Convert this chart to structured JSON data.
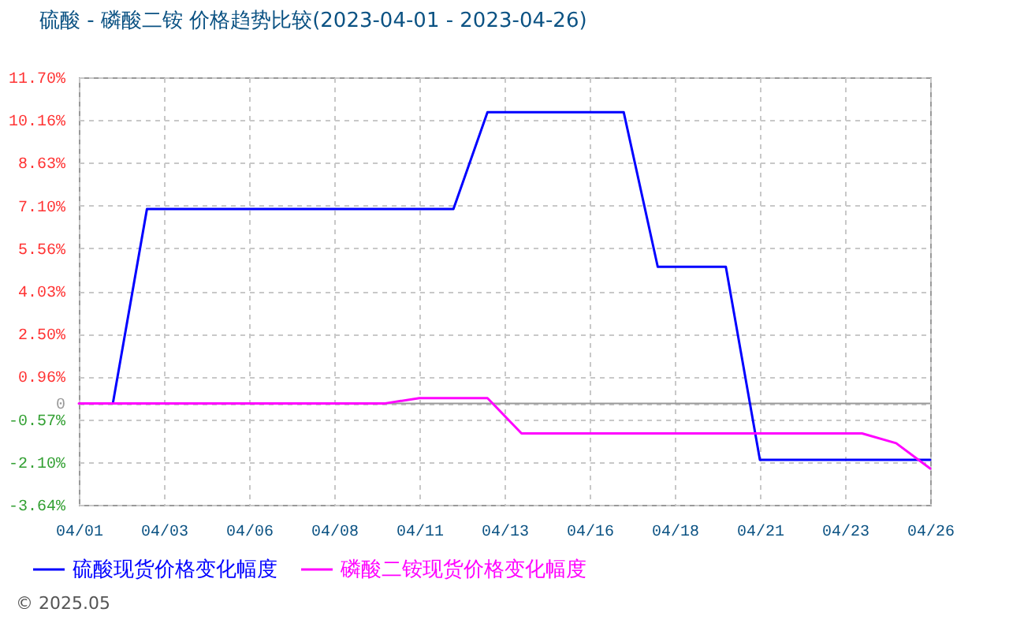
{
  "chart_data": {
    "type": "line",
    "title": "硫酸 - 磷酸二铵 价格趋势比较(2023-04-01 - 2023-04-26)",
    "x": [
      "2023-04-01",
      "2023-04-02",
      "2023-04-03",
      "2023-04-04",
      "2023-04-05",
      "2023-04-06",
      "2023-04-07",
      "2023-04-08",
      "2023-04-09",
      "2023-04-10",
      "2023-04-11",
      "2023-04-12",
      "2023-04-13",
      "2023-04-14",
      "2023-04-15",
      "2023-04-16",
      "2023-04-17",
      "2023-04-18",
      "2023-04-19",
      "2023-04-20",
      "2023-04-21",
      "2023-04-22",
      "2023-04-23",
      "2023-04-24",
      "2023-04-25",
      "2023-04-26"
    ],
    "series": [
      {
        "name": "硫酸现货价格变化幅度",
        "color": "#0000ff",
        "values": [
          null,
          0,
          6.97,
          6.97,
          6.97,
          6.97,
          6.97,
          6.97,
          6.97,
          6.97,
          6.97,
          6.97,
          10.45,
          10.45,
          10.45,
          10.45,
          10.45,
          4.9,
          4.9,
          4.9,
          -2.03,
          -2.03,
          -2.03,
          -2.03,
          -2.03,
          -2.03
        ]
      },
      {
        "name": "磷酸二铵现货价格变化幅度",
        "color": "#ff00ff",
        "values": [
          0,
          0,
          0,
          0,
          0,
          0,
          0,
          0,
          0,
          0,
          0.19,
          0.19,
          0.19,
          -1.08,
          -1.08,
          -1.08,
          -1.08,
          -1.08,
          -1.08,
          -1.08,
          -1.08,
          -1.08,
          -1.08,
          -1.08,
          -1.43,
          -2.34
        ]
      }
    ],
    "xlim": [
      "2023-04-01",
      "2023-04-26"
    ],
    "xticks": [
      {
        "value": "2023-04-01",
        "label": "04/01"
      },
      {
        "value": "2023-04-03T12:00",
        "label": "04/03"
      },
      {
        "value": "2023-04-06",
        "label": "04/06"
      },
      {
        "value": "2023-04-08T12:00",
        "label": "04/08"
      },
      {
        "value": "2023-04-11",
        "label": "04/11"
      },
      {
        "value": "2023-04-13T12:00",
        "label": "04/13"
      },
      {
        "value": "2023-04-16",
        "label": "04/16"
      },
      {
        "value": "2023-04-18T12:00",
        "label": "04/18"
      },
      {
        "value": "2023-04-21",
        "label": "04/21"
      },
      {
        "value": "2023-04-23T12:00",
        "label": "04/23"
      },
      {
        "value": "2023-04-26",
        "label": "04/26"
      }
    ],
    "ylim": [
      -3.64,
      11.7
    ],
    "yticks": [
      {
        "value": 11.7,
        "label": "11.70%"
      },
      {
        "value": 10.16,
        "label": "10.16%"
      },
      {
        "value": 8.63,
        "label": "8.63%"
      },
      {
        "value": 7.1,
        "label": "7.10%"
      },
      {
        "value": 5.56,
        "label": "5.56%"
      },
      {
        "value": 4.03,
        "label": "4.03%"
      },
      {
        "value": 2.5,
        "label": "2.50%"
      },
      {
        "value": 0.96,
        "label": "0.96%"
      },
      0,
      {
        "value": -0.57,
        "label": "-0.57%"
      },
      {
        "value": -2.1,
        "label": "-2.10%"
      },
      {
        "value": -3.64,
        "label": "-3.64%"
      }
    ],
    "grid": true,
    "legend": "bottom",
    "ref_lines": [
      {
        "axis": "y",
        "value": 0,
        "color": "#999999"
      }
    ],
    "annotations": [
      "© 2025.05"
    ]
  }
}
